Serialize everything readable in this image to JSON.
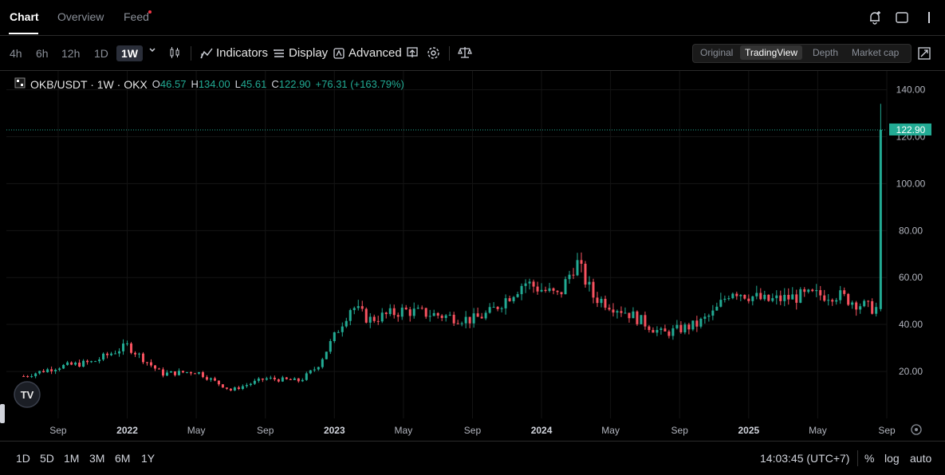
{
  "tabs": [
    {
      "label": "Chart"
    },
    {
      "label": "Overview"
    },
    {
      "label": "Feed"
    }
  ],
  "toolbar": {
    "intervals": [
      "4h",
      "6h",
      "12h",
      "1D",
      "1W"
    ],
    "active_interval": "1W",
    "indicators_label": "Indicators",
    "display_label": "Display",
    "advanced_label": "Advanced"
  },
  "view_modes": [
    "Original",
    "TradingView",
    "Depth",
    "Market cap"
  ],
  "active_view": "TradingView",
  "legend": {
    "symbol": "OKB/USDT · 1W · OKX",
    "o_label": "O",
    "o": "46.57",
    "h_label": "H",
    "h": "134.00",
    "l_label": "L",
    "l": "45.61",
    "c_label": "C",
    "c": "122.90",
    "change": "+76.31 (+163.79%)"
  },
  "chart_data": {
    "type": "candlestick",
    "pair": "OKB/USDT",
    "interval": "1W",
    "exchange": "OKX",
    "y_ticks": [
      "140.00",
      "120.00",
      "100.00",
      "80.00",
      "60.00",
      "40.00",
      "20.00"
    ],
    "ylim": [
      0,
      148
    ],
    "x_ticks": [
      "Sep",
      "2022",
      "May",
      "Sep",
      "2023",
      "May",
      "Sep",
      "2024",
      "May",
      "Sep",
      "2025",
      "May",
      "Sep"
    ],
    "x_range": [
      "2021-06",
      "2025-09"
    ],
    "last_price": 122.9,
    "last_price_label": "122.90",
    "up_color": "#22ab94",
    "down_color": "#f7525f",
    "grid": true,
    "approx_close_path": [
      {
        "date": "2021-07",
        "close": 18
      },
      {
        "date": "2021-09",
        "close": 22
      },
      {
        "date": "2021-11",
        "close": 24
      },
      {
        "date": "2022-01",
        "close": 31
      },
      {
        "date": "2022-03",
        "close": 19
      },
      {
        "date": "2022-05",
        "close": 20
      },
      {
        "date": "2022-07",
        "close": 12
      },
      {
        "date": "2022-09",
        "close": 17
      },
      {
        "date": "2022-11",
        "close": 16
      },
      {
        "date": "2022-12",
        "close": 22
      },
      {
        "date": "2023-02",
        "close": 48
      },
      {
        "date": "2023-03",
        "close": 42
      },
      {
        "date": "2023-05",
        "close": 46
      },
      {
        "date": "2023-07",
        "close": 44
      },
      {
        "date": "2023-09",
        "close": 42
      },
      {
        "date": "2023-10",
        "close": 45
      },
      {
        "date": "2023-12",
        "close": 58
      },
      {
        "date": "2024-02",
        "close": 52
      },
      {
        "date": "2024-03",
        "close": 67
      },
      {
        "date": "2024-04",
        "close": 52
      },
      {
        "date": "2024-06",
        "close": 45
      },
      {
        "date": "2024-08",
        "close": 36
      },
      {
        "date": "2024-10",
        "close": 40
      },
      {
        "date": "2024-11",
        "close": 45
      },
      {
        "date": "2024-12",
        "close": 55
      },
      {
        "date": "2025-02",
        "close": 50
      },
      {
        "date": "2025-04",
        "close": 52
      },
      {
        "date": "2025-06",
        "close": 53
      },
      {
        "date": "2025-08",
        "close": 47
      },
      {
        "date": "2025-08",
        "close": 122.9
      }
    ]
  },
  "bottom": {
    "ranges": [
      "1D",
      "5D",
      "1M",
      "3M",
      "6M",
      "1Y"
    ],
    "clock": "14:03:45 (UTC+7)",
    "percent_label": "%",
    "log_label": "log",
    "auto_label": "auto"
  },
  "icons": [
    "alert-bell-icon",
    "layout-icon",
    "more-icon",
    "candle-type-icon",
    "indicators-icon",
    "display-icon",
    "advanced-icon",
    "replay-icon",
    "settings-icon",
    "compare-icon",
    "fullscreen-icon",
    "tradingview-logo",
    "chart-settings-icon"
  ]
}
